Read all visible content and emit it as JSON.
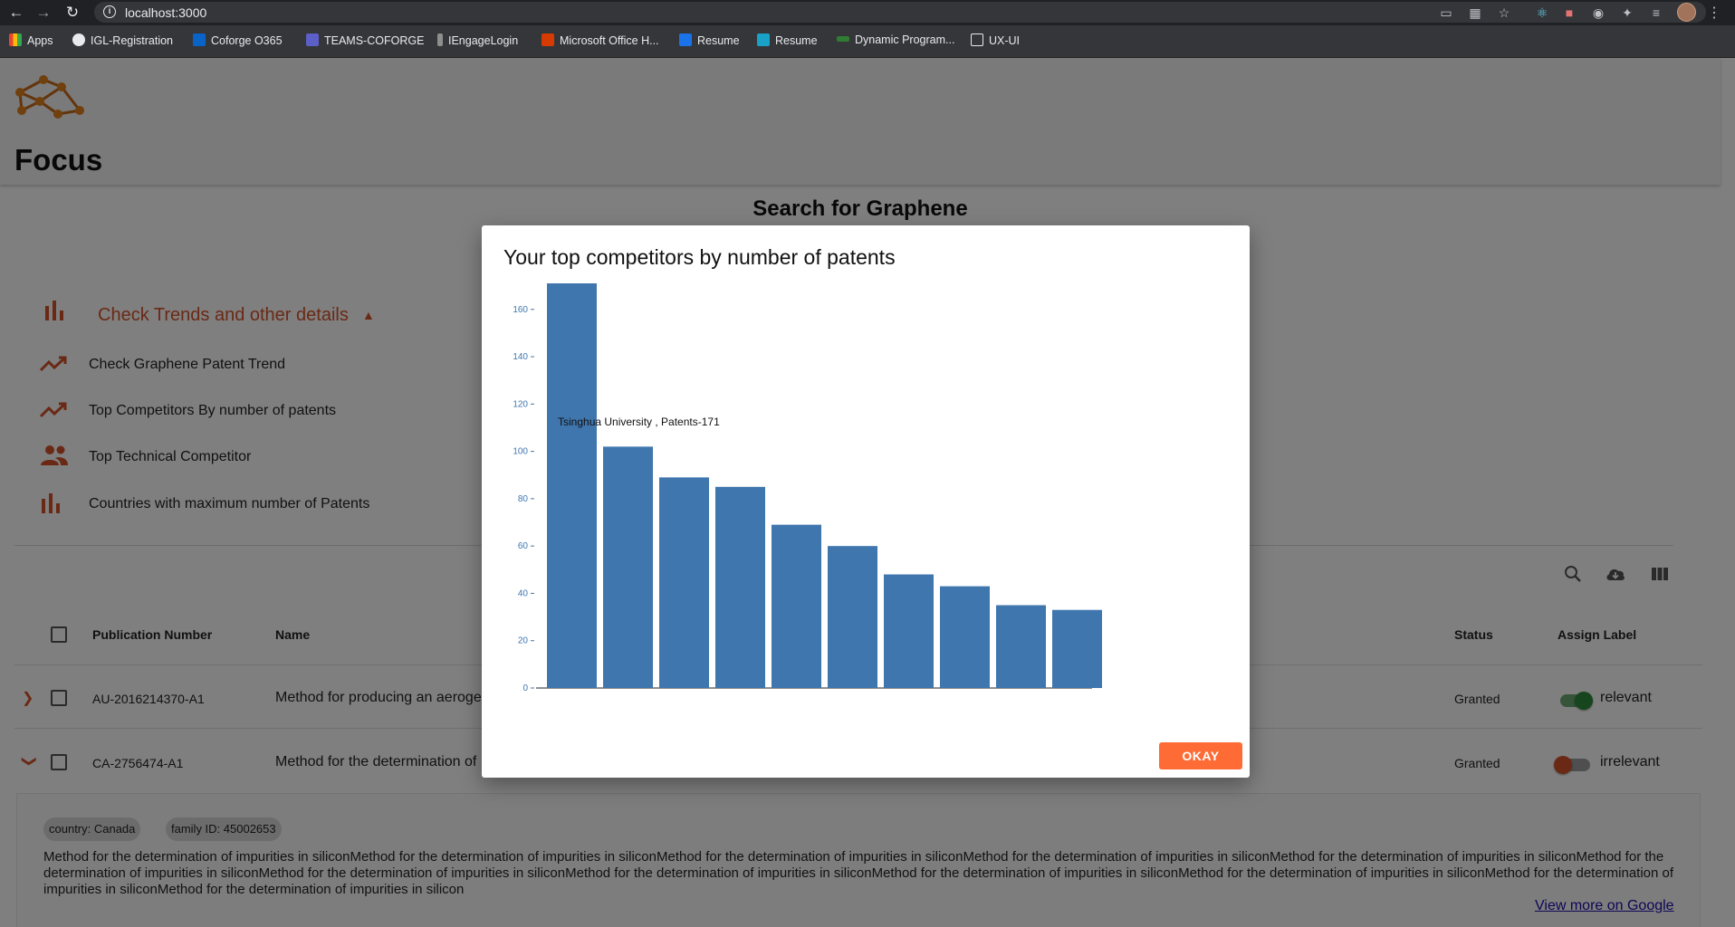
{
  "browser": {
    "url": "localhost:3000",
    "bookmarks": [
      "Apps",
      "IGL-Registration",
      "Coforge O365",
      "TEAMS-COFORGE",
      "IEngageLogin",
      "Microsoft Office H...",
      "Resume",
      "Resume",
      "Dynamic Program...",
      "UX-UI"
    ]
  },
  "header": {
    "brand": "Focus"
  },
  "search": {
    "title": "Search for Graphene"
  },
  "trends": {
    "label": "Check Trends and other details",
    "items": [
      {
        "label": "Check Graphene Patent Trend",
        "icon": "trending-up-icon"
      },
      {
        "label": "Top Competitors By number of patents",
        "icon": "trending-up-icon"
      },
      {
        "label": "Top Technical Competitor",
        "icon": "people-icon"
      },
      {
        "label": "Countries with maximum number of Patents",
        "icon": "bar-chart-icon"
      }
    ]
  },
  "table": {
    "headers": {
      "publication_number": "Publication Number",
      "name": "Name",
      "status": "Status",
      "assign_label": "Assign Label"
    },
    "rows": [
      {
        "publication_number": "AU-2016214370-A1",
        "name": "Method for producing an aeroge",
        "status": "Granted",
        "label": "relevant",
        "toggle_on": true
      },
      {
        "publication_number": "CA-2756474-A1",
        "name": "Method for the determination of",
        "status": "Granted",
        "label": "irrelevant",
        "toggle_on": false
      }
    ]
  },
  "detail": {
    "chips": [
      "country: Canada",
      "family ID: 45002653"
    ],
    "description": "Method for the determination of impurities in siliconMethod for the determination of impurities in siliconMethod for the determination of impurities in siliconMethod for the determination of impurities in siliconMethod for the determination of impurities in siliconMethod for the determination of impurities in siliconMethod for the determination of impurities in siliconMethod for the determination of impurities in siliconMethod for the determination of impurities in siliconMethod for the determination of impurities in siliconMethod for the determination of impurities in siliconMethod for the determination of impurities in silicon",
    "link": "View more on Google"
  },
  "modal": {
    "title": "Your top competitors by number of patents",
    "okay_label": "OKAY"
  },
  "colors": {
    "accent": "#d5522a",
    "bar": "#3f76ae",
    "button": "#ff6b35"
  },
  "chart_data": {
    "type": "bar",
    "values": [
      171,
      102,
      89,
      85,
      69,
      60,
      48,
      43,
      35,
      33
    ],
    "ylim": [
      0,
      171
    ],
    "yticks": [
      0,
      20,
      40,
      60,
      80,
      100,
      120,
      140,
      160
    ],
    "tooltip": "Tsinghua University , Patents-171"
  }
}
